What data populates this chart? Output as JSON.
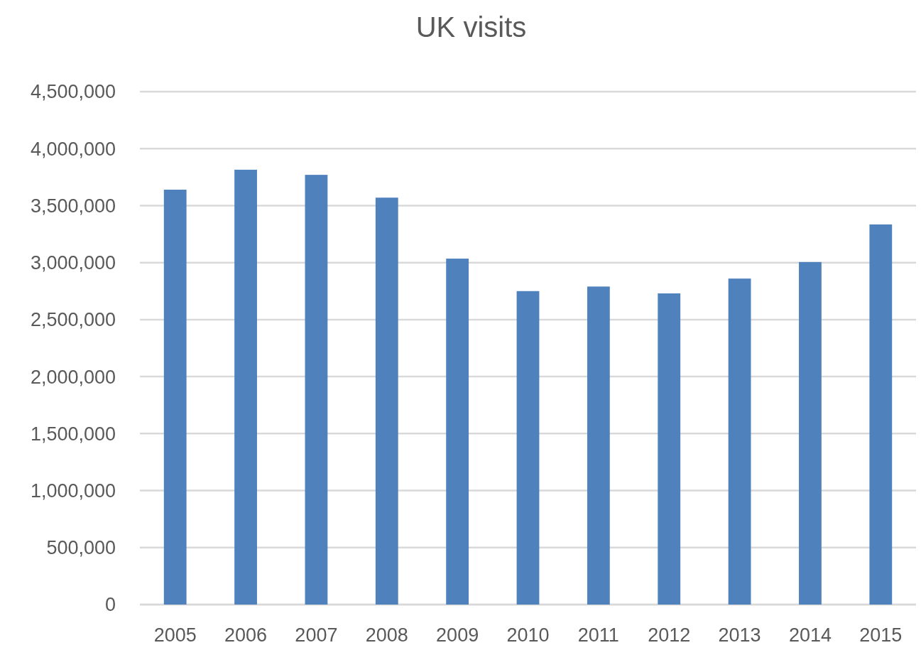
{
  "chart_data": {
    "type": "bar",
    "title": "UK visits",
    "categories": [
      "2005",
      "2006",
      "2007",
      "2008",
      "2009",
      "2010",
      "2011",
      "2012",
      "2013",
      "2014",
      "2015"
    ],
    "values": [
      3640000,
      3815000,
      3770000,
      3570000,
      3035000,
      2750000,
      2790000,
      2730000,
      2860000,
      3005000,
      3335000
    ],
    "color": "#4f81bd",
    "ylim": [
      0,
      4500000
    ],
    "yticks": [
      {
        "value": 0,
        "label": "0"
      },
      {
        "value": 500000,
        "label": "500,000"
      },
      {
        "value": 1000000,
        "label": "1,000,000"
      },
      {
        "value": 1500000,
        "label": "1,500,000"
      },
      {
        "value": 2000000,
        "label": "2,000,000"
      },
      {
        "value": 2500000,
        "label": "2,500,000"
      },
      {
        "value": 3000000,
        "label": "3,000,000"
      },
      {
        "value": 3500000,
        "label": "3,500,000"
      },
      {
        "value": 4000000,
        "label": "4,000,000"
      },
      {
        "value": 4500000,
        "label": "4,500,000"
      }
    ],
    "grid": true
  }
}
